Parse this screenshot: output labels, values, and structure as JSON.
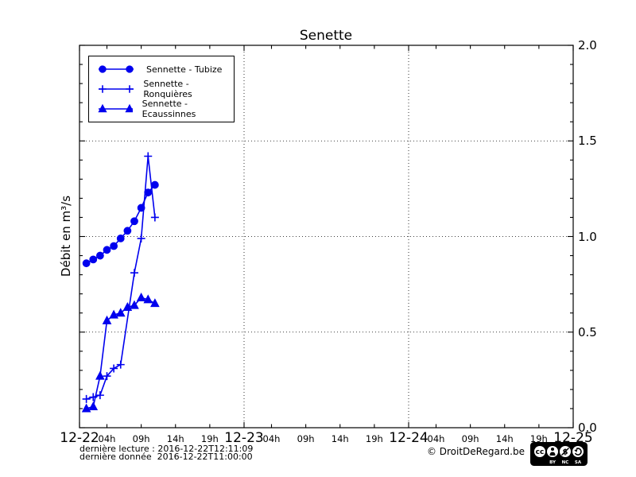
{
  "title": "Senette",
  "y_axis": {
    "label": "Débit en m³/s"
  },
  "legend": {
    "items": [
      {
        "label": "Sennette - Tubize",
        "marker": "circle"
      },
      {
        "label": "Sennette - Ronquières",
        "marker": "plus"
      },
      {
        "label": "Sennette - Ecaussinnes",
        "marker": "triangle"
      }
    ]
  },
  "footer": {
    "last_reading": "dernière lecture : 2016-12-22T12:11:09",
    "last_data": "dernière donnée  2016-12-22T11:00:00",
    "copyright": "© DroitDeRegard.be",
    "cc_labels": [
      "BY",
      "NC",
      "SA"
    ]
  },
  "colors": {
    "series": "#0000ee",
    "axis": "#000000",
    "grid": "#000000"
  },
  "chart_data": {
    "type": "line",
    "title": "Senette",
    "ylabel": "Débit en m³/s",
    "ylim": [
      0,
      2
    ],
    "xlim_hours": [
      0,
      72
    ],
    "x_start": "2016-12-22T00:00",
    "grid": "dotted; horizontal at 0.5/1.0/1.5, vertical at day boundaries",
    "legend_position": "upper left",
    "y_major_ticks": [
      {
        "value": 0,
        "label": "0.0"
      },
      {
        "value": 0.5,
        "label": "0.5"
      },
      {
        "value": 1,
        "label": "1.0"
      },
      {
        "value": 1.5,
        "label": "1.5"
      },
      {
        "value": 2,
        "label": "2.0"
      }
    ],
    "y_minor_step": 0.1,
    "x_day_ticks": [
      {
        "hour": 0,
        "label": "12-22"
      },
      {
        "hour": 24,
        "label": "12-23"
      },
      {
        "hour": 48,
        "label": "12-24"
      },
      {
        "hour": 72,
        "label": "12-25"
      }
    ],
    "x_hour_ticks": [
      4,
      9,
      14,
      19
    ],
    "x_hour_labels": [
      "04h",
      "09h",
      "14h",
      "19h"
    ],
    "series": [
      {
        "name": "Sennette - Tubize",
        "marker": "circle",
        "color": "#0000ee",
        "x_hours": [
          1,
          2,
          3,
          4,
          5,
          6,
          7,
          8,
          9,
          10,
          11
        ],
        "values": [
          0.86,
          0.88,
          0.9,
          0.93,
          0.95,
          0.99,
          1.03,
          1.08,
          1.15,
          1.23,
          1.27
        ]
      },
      {
        "name": "Sennette - Ronquières",
        "marker": "plus",
        "color": "#0000ee",
        "x_hours": [
          1,
          2,
          3,
          4,
          5,
          6,
          8,
          9,
          10,
          11
        ],
        "values": [
          0.15,
          0.16,
          0.17,
          0.27,
          0.31,
          0.33,
          0.81,
          0.99,
          1.42,
          1.1
        ]
      },
      {
        "name": "Sennette - Ecaussinnes",
        "marker": "triangle",
        "color": "#0000ee",
        "x_hours": [
          1,
          2,
          3,
          4,
          5,
          6,
          7,
          8,
          9,
          10,
          11
        ],
        "values": [
          0.1,
          0.11,
          0.27,
          0.56,
          0.59,
          0.6,
          0.63,
          0.64,
          0.68,
          0.67,
          0.65
        ]
      }
    ]
  }
}
